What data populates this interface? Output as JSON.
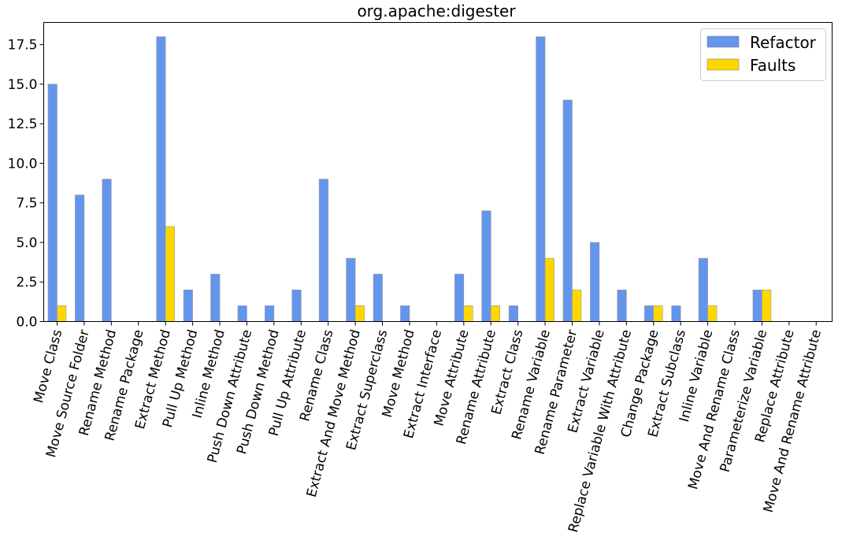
{
  "chart_data": {
    "type": "bar",
    "title": "org.apache:digester",
    "xlabel": "",
    "ylabel": "",
    "ylim": [
      0,
      18.9
    ],
    "yticks": [
      0.0,
      2.5,
      5.0,
      7.5,
      10.0,
      12.5,
      15.0,
      17.5
    ],
    "ytick_labels": [
      "0.0",
      "2.5",
      "5.0",
      "7.5",
      "10.0",
      "12.5",
      "15.0",
      "17.5"
    ],
    "legend_position": "top-right",
    "grid": false,
    "categories": [
      "Move Class",
      "Move Source Folder",
      "Rename Method",
      "Rename Package",
      "Extract Method",
      "Pull Up Method",
      "Inline Method",
      "Push Down Attribute",
      "Push Down Method",
      "Pull Up Attribute",
      "Rename Class",
      "Extract And Move Method",
      "Extract Superclass",
      "Move Method",
      "Extract Interface",
      "Move Attribute",
      "Rename Attribute",
      "Extract Class",
      "Rename Variable",
      "Rename Parameter",
      "Extract Variable",
      "Replace Variable With Attribute",
      "Change Package",
      "Extract Subclass",
      "Inline Variable",
      "Move And Rename Class",
      "Parameterize Variable",
      "Replace Attribute",
      "Move And Rename Attribute"
    ],
    "series": [
      {
        "name": "Refactor",
        "color": "#6495ED",
        "values": [
          15,
          8,
          9,
          0,
          18,
          2,
          3,
          1,
          1,
          2,
          9,
          4,
          3,
          1,
          0,
          3,
          7,
          1,
          18,
          14,
          5,
          2,
          1,
          1,
          4,
          0,
          2,
          0,
          0
        ]
      },
      {
        "name": "Faults",
        "color": "#FFD700",
        "values": [
          1,
          0,
          0,
          0,
          6,
          0,
          0,
          0,
          0,
          0,
          0,
          1,
          0,
          0,
          0,
          1,
          1,
          0,
          4,
          2,
          0,
          0,
          1,
          0,
          1,
          0,
          2,
          0,
          0
        ]
      }
    ]
  }
}
